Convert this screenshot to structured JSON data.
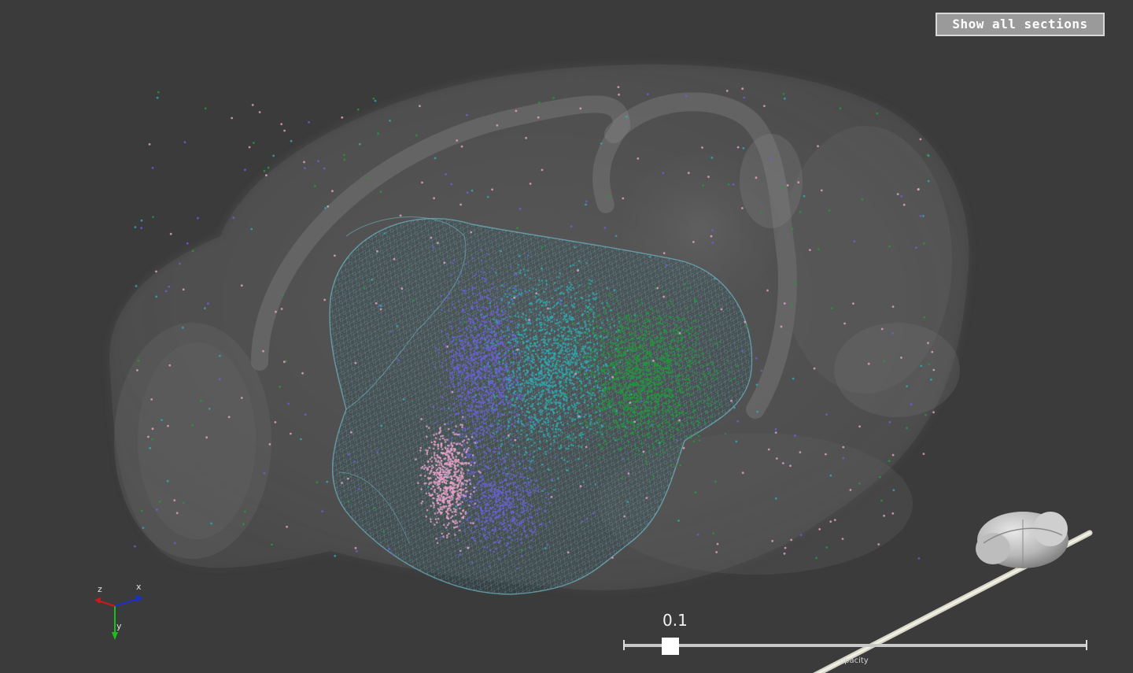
{
  "toolbar": {
    "show_sections_label": "Show all sections"
  },
  "opacity_slider": {
    "value_text": "0.1",
    "label": "opacity",
    "value": 0.1,
    "min": 0,
    "max": 1
  },
  "axes_widget": {
    "x_label": "x",
    "y_label": "y",
    "z_label": "z",
    "x_color": "#1a2fd0",
    "y_color": "#18c018",
    "z_color": "#d01818"
  },
  "colors": {
    "background": "#3b3b3b",
    "brain_shell": "#8c8c8c",
    "mesh_wire": "#6fb8c8",
    "cluster_pink": "#e7a3c9",
    "cluster_purple": "#6a60d8",
    "cluster_teal": "#2faab0",
    "cluster_green": "#1f9a3a"
  },
  "icons": {
    "orientation_widget": "brain-orientation-icon"
  }
}
